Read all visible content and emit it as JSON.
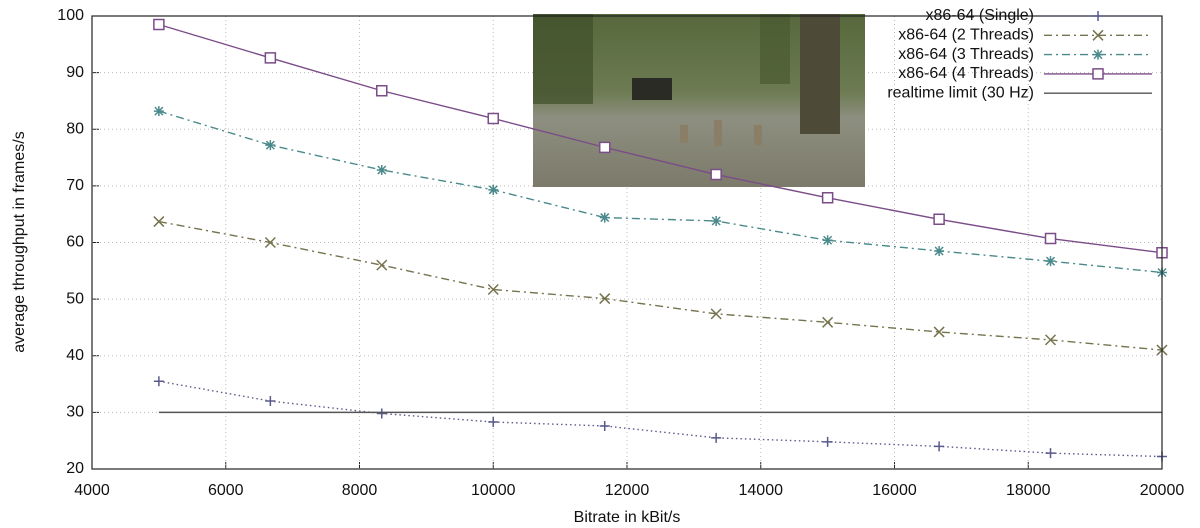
{
  "chart_data": {
    "type": "line",
    "xlabel": "Bitrate in kBit/s",
    "ylabel": "average throughput in frames/s",
    "x": [
      5000,
      6667,
      8333,
      10000,
      11667,
      13333,
      15000,
      16667,
      18333,
      20000
    ],
    "series": [
      {
        "name": "x86-64 (Single)",
        "color": "#5a5a8c",
        "linestyle": "dotted",
        "marker": "plus",
        "values": [
          35.5,
          32,
          29.8,
          28.3,
          27.6,
          25.5,
          24.8,
          24,
          22.8,
          22.2
        ]
      },
      {
        "name": "x86-64 (2 Threads)",
        "color": "#76744e",
        "linestyle": "dashdot",
        "marker": "cross",
        "values": [
          63.7,
          60,
          56,
          51.7,
          50.1,
          47.4,
          45.9,
          44.2,
          42.8,
          41
        ]
      },
      {
        "name": "x86-64 (3 Threads)",
        "color": "#4b8a8c",
        "linestyle": "dashdot",
        "marker": "star",
        "values": [
          83.2,
          77.2,
          72.8,
          69.3,
          64.4,
          63.8,
          60.4,
          58.5,
          56.7,
          54.7
        ]
      },
      {
        "name": "x86-64 (4 Threads)",
        "color": "#7a4c88",
        "linestyle": "solid",
        "marker": "square",
        "values": [
          98.5,
          92.6,
          86.8,
          81.9,
          76.8,
          72,
          67.9,
          64.1,
          60.7,
          58.2
        ]
      },
      {
        "name": "realtime limit (30 Hz)",
        "color": "#555555",
        "linestyle": "solid",
        "marker": "none",
        "values": [
          30,
          30,
          30,
          30,
          30,
          30,
          30,
          30,
          30,
          30
        ]
      }
    ],
    "xlim": [
      4000,
      20000
    ],
    "xticks": [
      4000,
      6000,
      8000,
      10000,
      12000,
      14000,
      16000,
      18000,
      20000
    ],
    "ylim": [
      20,
      100
    ],
    "yticks": [
      20,
      30,
      40,
      50,
      60,
      70,
      80,
      90,
      100
    ],
    "grid": true
  }
}
